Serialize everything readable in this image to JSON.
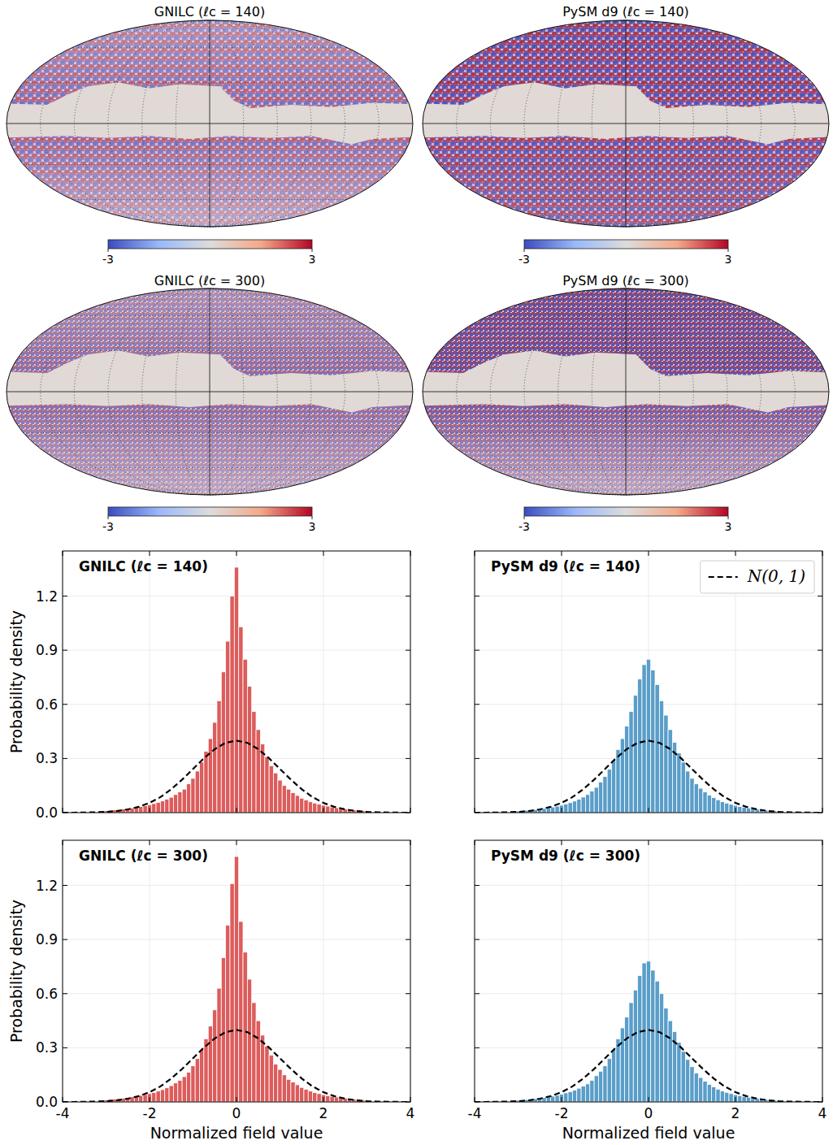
{
  "chart_data": [
    {
      "type": "map",
      "title": "GNILC (ℓc = 140)",
      "colorbar_range": [
        -3,
        3
      ],
      "colorbar_ticks": [
        -3,
        3
      ]
    },
    {
      "type": "map",
      "title": "PySM d9 (ℓc = 140)",
      "colorbar_range": [
        -3,
        3
      ],
      "colorbar_ticks": [
        -3,
        3
      ]
    },
    {
      "type": "map",
      "title": "GNILC (ℓc = 300)",
      "colorbar_range": [
        -3,
        3
      ],
      "colorbar_ticks": [
        -3,
        3
      ]
    },
    {
      "type": "map",
      "title": "PySM d9 (ℓc = 300)",
      "colorbar_range": [
        -3,
        3
      ],
      "colorbar_ticks": [
        -3,
        3
      ]
    },
    {
      "type": "histogram",
      "title": "GNILC (ℓc = 140)",
      "color": "#dd5c5c",
      "bins": [
        -3.05,
        -2.95,
        -2.85,
        -2.75,
        -2.65,
        -2.55,
        -2.45,
        -2.35,
        -2.25,
        -2.15,
        -2.05,
        -1.95,
        -1.85,
        -1.75,
        -1.65,
        -1.55,
        -1.45,
        -1.35,
        -1.25,
        -1.15,
        -1.05,
        -0.95,
        -0.85,
        -0.75,
        -0.65,
        -0.55,
        -0.45,
        -0.35,
        -0.25,
        -0.15,
        -0.05,
        0.05,
        0.15,
        0.25,
        0.35,
        0.45,
        0.55,
        0.65,
        0.75,
        0.85,
        0.95,
        1.05,
        1.15,
        1.25,
        1.35,
        1.45,
        1.55,
        1.65,
        1.75,
        1.85,
        1.95,
        2.05,
        2.15,
        2.25,
        2.35,
        2.45,
        2.55,
        2.65,
        2.75,
        2.85,
        2.95,
        3.05
      ],
      "values": [
        0.011,
        0.013,
        0.015,
        0.017,
        0.02,
        0.023,
        0.026,
        0.03,
        0.034,
        0.039,
        0.044,
        0.05,
        0.057,
        0.065,
        0.075,
        0.085,
        0.1,
        0.115,
        0.13,
        0.16,
        0.19,
        0.23,
        0.28,
        0.34,
        0.41,
        0.5,
        0.62,
        0.78,
        0.95,
        1.2,
        1.36,
        1.03,
        0.85,
        0.7,
        0.56,
        0.46,
        0.38,
        0.31,
        0.26,
        0.22,
        0.18,
        0.15,
        0.13,
        0.11,
        0.095,
        0.08,
        0.07,
        0.06,
        0.053,
        0.047,
        0.041,
        0.036,
        0.031,
        0.027,
        0.024,
        0.021,
        0.018,
        0.016,
        0.014,
        0.012,
        0.01
      ],
      "series": [
        {
          "type": "line",
          "line_style": "dashed",
          "color": "#000000",
          "x": [
            -4,
            -3.75,
            -3.5,
            -3.25,
            -3,
            -2.75,
            -2.5,
            -2.25,
            -2,
            -1.75,
            -1.5,
            -1.25,
            -1,
            -0.75,
            -0.5,
            -0.25,
            0,
            0.25,
            0.5,
            0.75,
            1,
            1.25,
            1.5,
            1.75,
            2,
            2.25,
            2.5,
            2.75,
            3,
            3.25,
            3.5,
            3.75,
            4
          ],
          "values": [
            0,
            0,
            0.001,
            0.002,
            0.004,
            0.009,
            0.018,
            0.032,
            0.054,
            0.086,
            0.13,
            0.183,
            0.242,
            0.301,
            0.352,
            0.387,
            0.399,
            0.387,
            0.352,
            0.301,
            0.242,
            0.183,
            0.13,
            0.086,
            0.054,
            0.032,
            0.018,
            0.009,
            0.004,
            0.002,
            0.001,
            0,
            0
          ]
        }
      ],
      "xlim": [
        -4,
        4
      ],
      "ylim": [
        0,
        1.45
      ],
      "xticks": [
        -4,
        -2,
        0,
        2,
        4
      ],
      "yticks": [
        {
          "value": 0,
          "label": "0.0"
        },
        0.3,
        0.6,
        0.9,
        1.2
      ],
      "grid": true,
      "tick_labels": "y",
      "y_label": "Probability density"
    },
    {
      "type": "histogram",
      "title": "PySM d9 (ℓc = 140)",
      "color": "#5a9ec9",
      "bins": [
        -3.05,
        -2.95,
        -2.85,
        -2.75,
        -2.65,
        -2.55,
        -2.45,
        -2.35,
        -2.25,
        -2.15,
        -2.05,
        -1.95,
        -1.85,
        -1.75,
        -1.65,
        -1.55,
        -1.45,
        -1.35,
        -1.25,
        -1.15,
        -1.05,
        -0.95,
        -0.85,
        -0.75,
        -0.65,
        -0.55,
        -0.45,
        -0.35,
        -0.25,
        -0.15,
        -0.05,
        0.05,
        0.15,
        0.25,
        0.35,
        0.45,
        0.55,
        0.65,
        0.75,
        0.85,
        0.95,
        1.05,
        1.15,
        1.25,
        1.35,
        1.45,
        1.55,
        1.65,
        1.75,
        1.85,
        1.95,
        2.05,
        2.15,
        2.25,
        2.35,
        2.45,
        2.55,
        2.65,
        2.75,
        2.85,
        2.95,
        3.05
      ],
      "values": [
        0.009,
        0.011,
        0.013,
        0.015,
        0.017,
        0.02,
        0.023,
        0.027,
        0.031,
        0.036,
        0.041,
        0.048,
        0.055,
        0.064,
        0.074,
        0.086,
        0.1,
        0.12,
        0.14,
        0.17,
        0.2,
        0.24,
        0.29,
        0.35,
        0.41,
        0.48,
        0.56,
        0.65,
        0.74,
        0.82,
        0.85,
        0.79,
        0.71,
        0.62,
        0.54,
        0.46,
        0.39,
        0.33,
        0.28,
        0.23,
        0.19,
        0.16,
        0.135,
        0.115,
        0.097,
        0.083,
        0.071,
        0.061,
        0.053,
        0.046,
        0.04,
        0.034,
        0.03,
        0.026,
        0.022,
        0.019,
        0.016,
        0.014,
        0.012,
        0.01,
        0.009
      ],
      "series": [
        {
          "name": "N(0, 1)",
          "type": "line",
          "line_style": "dashed",
          "color": "#000000",
          "x": [
            -4,
            -3.75,
            -3.5,
            -3.25,
            -3,
            -2.75,
            -2.5,
            -2.25,
            -2,
            -1.75,
            -1.5,
            -1.25,
            -1,
            -0.75,
            -0.5,
            -0.25,
            0,
            0.25,
            0.5,
            0.75,
            1,
            1.25,
            1.5,
            1.75,
            2,
            2.25,
            2.5,
            2.75,
            3,
            3.25,
            3.5,
            3.75,
            4
          ],
          "values": [
            0,
            0,
            0.001,
            0.002,
            0.004,
            0.009,
            0.018,
            0.032,
            0.054,
            0.086,
            0.13,
            0.183,
            0.242,
            0.301,
            0.352,
            0.387,
            0.399,
            0.387,
            0.352,
            0.301,
            0.242,
            0.183,
            0.13,
            0.086,
            0.054,
            0.032,
            0.018,
            0.009,
            0.004,
            0.002,
            0.001,
            0,
            0
          ]
        }
      ],
      "xlim": [
        -4,
        4
      ],
      "ylim": [
        0,
        1.45
      ],
      "xticks": [
        -4,
        -2,
        0,
        2,
        4
      ],
      "yticks": [
        {
          "value": 0,
          "label": "0.0"
        },
        0.3,
        0.6,
        0.9,
        1.2
      ],
      "grid": true,
      "tick_labels": false,
      "legend": "upper right"
    },
    {
      "type": "histogram",
      "title": "GNILC (ℓc = 300)",
      "color": "#dd5c5c",
      "bins": [
        -3.05,
        -2.95,
        -2.85,
        -2.75,
        -2.65,
        -2.55,
        -2.45,
        -2.35,
        -2.25,
        -2.15,
        -2.05,
        -1.95,
        -1.85,
        -1.75,
        -1.65,
        -1.55,
        -1.45,
        -1.35,
        -1.25,
        -1.15,
        -1.05,
        -0.95,
        -0.85,
        -0.75,
        -0.65,
        -0.55,
        -0.45,
        -0.35,
        -0.25,
        -0.15,
        -0.05,
        0.05,
        0.15,
        0.25,
        0.35,
        0.45,
        0.55,
        0.65,
        0.75,
        0.85,
        0.95,
        1.05,
        1.15,
        1.25,
        1.35,
        1.45,
        1.55,
        1.65,
        1.75,
        1.85,
        1.95,
        2.05,
        2.15,
        2.25,
        2.35,
        2.45,
        2.55,
        2.65,
        2.75,
        2.85,
        2.95,
        3.05
      ],
      "values": [
        0.012,
        0.014,
        0.016,
        0.018,
        0.021,
        0.024,
        0.028,
        0.032,
        0.036,
        0.041,
        0.046,
        0.052,
        0.06,
        0.068,
        0.078,
        0.09,
        0.105,
        0.12,
        0.14,
        0.165,
        0.2,
        0.24,
        0.29,
        0.35,
        0.42,
        0.51,
        0.63,
        0.8,
        0.98,
        1.21,
        1.36,
        1.0,
        0.83,
        0.68,
        0.55,
        0.45,
        0.37,
        0.31,
        0.26,
        0.21,
        0.18,
        0.15,
        0.125,
        0.11,
        0.095,
        0.08,
        0.07,
        0.06,
        0.052,
        0.046,
        0.04,
        0.035,
        0.031,
        0.027,
        0.024,
        0.021,
        0.018,
        0.016,
        0.014,
        0.012,
        0.01
      ],
      "series": [
        {
          "type": "line",
          "line_style": "dashed",
          "color": "#000000",
          "x": [
            -4,
            -3.75,
            -3.5,
            -3.25,
            -3,
            -2.75,
            -2.5,
            -2.25,
            -2,
            -1.75,
            -1.5,
            -1.25,
            -1,
            -0.75,
            -0.5,
            -0.25,
            0,
            0.25,
            0.5,
            0.75,
            1,
            1.25,
            1.5,
            1.75,
            2,
            2.25,
            2.5,
            2.75,
            3,
            3.25,
            3.5,
            3.75,
            4
          ],
          "values": [
            0,
            0,
            0.001,
            0.002,
            0.004,
            0.009,
            0.018,
            0.032,
            0.054,
            0.086,
            0.13,
            0.183,
            0.242,
            0.301,
            0.352,
            0.387,
            0.399,
            0.387,
            0.352,
            0.301,
            0.242,
            0.183,
            0.13,
            0.086,
            0.054,
            0.032,
            0.018,
            0.009,
            0.004,
            0.002,
            0.001,
            0,
            0
          ]
        }
      ],
      "xlim": [
        -4,
        4
      ],
      "ylim": [
        0,
        1.45
      ],
      "xticks": [
        -4,
        -2,
        0,
        2,
        4
      ],
      "yticks": [
        {
          "value": 0,
          "label": "0.0"
        },
        0.3,
        0.6,
        0.9,
        1.2
      ],
      "grid": true,
      "tick_labels": true,
      "x_label": "Normalized field value",
      "y_label": "Probability density"
    },
    {
      "type": "histogram",
      "title": "PySM d9 (ℓc = 300)",
      "color": "#5a9ec9",
      "bins": [
        -3.05,
        -2.95,
        -2.85,
        -2.75,
        -2.65,
        -2.55,
        -2.45,
        -2.35,
        -2.25,
        -2.15,
        -2.05,
        -1.95,
        -1.85,
        -1.75,
        -1.65,
        -1.55,
        -1.45,
        -1.35,
        -1.25,
        -1.15,
        -1.05,
        -0.95,
        -0.85,
        -0.75,
        -0.65,
        -0.55,
        -0.45,
        -0.35,
        -0.25,
        -0.15,
        -0.05,
        0.05,
        0.15,
        0.25,
        0.35,
        0.45,
        0.55,
        0.65,
        0.75,
        0.85,
        0.95,
        1.05,
        1.15,
        1.25,
        1.35,
        1.45,
        1.55,
        1.65,
        1.75,
        1.85,
        1.95,
        2.05,
        2.15,
        2.25,
        2.35,
        2.45,
        2.55,
        2.65,
        2.75,
        2.85,
        2.95,
        3.05
      ],
      "values": [
        0.009,
        0.011,
        0.013,
        0.015,
        0.018,
        0.021,
        0.024,
        0.028,
        0.032,
        0.037,
        0.043,
        0.05,
        0.057,
        0.066,
        0.076,
        0.088,
        0.1,
        0.12,
        0.145,
        0.17,
        0.2,
        0.24,
        0.29,
        0.35,
        0.41,
        0.47,
        0.55,
        0.62,
        0.7,
        0.77,
        0.78,
        0.73,
        0.67,
        0.6,
        0.52,
        0.45,
        0.39,
        0.33,
        0.28,
        0.235,
        0.195,
        0.16,
        0.135,
        0.115,
        0.097,
        0.083,
        0.071,
        0.061,
        0.053,
        0.046,
        0.04,
        0.035,
        0.03,
        0.026,
        0.022,
        0.019,
        0.016,
        0.014,
        0.012,
        0.01,
        0.009
      ],
      "series": [
        {
          "type": "line",
          "line_style": "dashed",
          "color": "#000000",
          "x": [
            -4,
            -3.75,
            -3.5,
            -3.25,
            -3,
            -2.75,
            -2.5,
            -2.25,
            -2,
            -1.75,
            -1.5,
            -1.25,
            -1,
            -0.75,
            -0.5,
            -0.25,
            0,
            0.25,
            0.5,
            0.75,
            1,
            1.25,
            1.5,
            1.75,
            2,
            2.25,
            2.5,
            2.75,
            3,
            3.25,
            3.5,
            3.75,
            4
          ],
          "values": [
            0,
            0,
            0.001,
            0.002,
            0.004,
            0.009,
            0.018,
            0.032,
            0.054,
            0.086,
            0.13,
            0.183,
            0.242,
            0.301,
            0.352,
            0.387,
            0.399,
            0.387,
            0.352,
            0.301,
            0.242,
            0.183,
            0.13,
            0.086,
            0.054,
            0.032,
            0.018,
            0.009,
            0.004,
            0.002,
            0.001,
            0,
            0
          ]
        }
      ],
      "xlim": [
        -4,
        4
      ],
      "ylim": [
        0,
        1.45
      ],
      "xticks": [
        -4,
        -2,
        0,
        2,
        4
      ],
      "yticks": [
        {
          "value": 0,
          "label": "0.0"
        },
        0.3,
        0.6,
        0.9,
        1.2
      ],
      "grid": true,
      "tick_labels": "x",
      "x_label": "Normalized field value"
    }
  ]
}
